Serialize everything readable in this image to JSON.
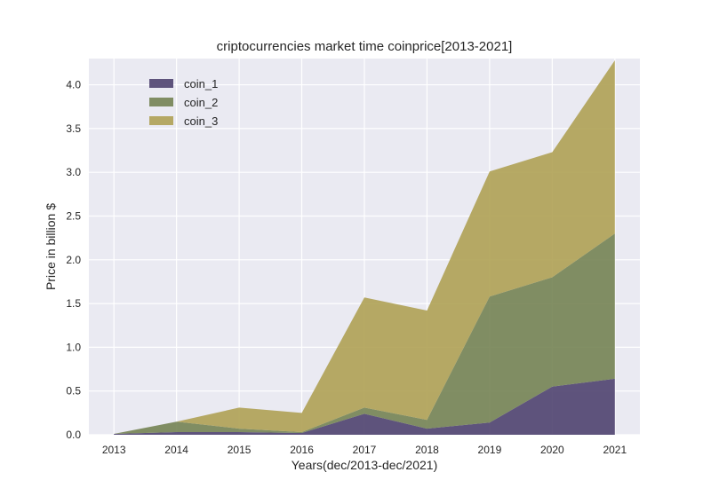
{
  "chart_data": {
    "type": "area",
    "stacked": true,
    "title": "criptocurrencies market time coinprice[2013-2021]",
    "xlabel": "Years(dec/2013-dec/2021)",
    "ylabel": "Price in billion $",
    "x": [
      2013,
      2014,
      2015,
      2016,
      2017,
      2018,
      2019,
      2020,
      2021
    ],
    "ylim": [
      0,
      4.3
    ],
    "yticks": [
      0.0,
      0.5,
      1.0,
      1.5,
      2.0,
      2.5,
      3.0,
      3.5,
      4.0
    ],
    "ytick_labels": [
      "0.0",
      "0.5",
      "1.0",
      "1.5",
      "2.0",
      "2.5",
      "3.0",
      "3.5",
      "4.0"
    ],
    "grid": true,
    "legend": "top-left",
    "series": [
      {
        "name": "coin_1",
        "color": "#4a3e6b",
        "values": [
          0.01,
          0.03,
          0.03,
          0.02,
          0.24,
          0.07,
          0.14,
          0.55,
          0.64
        ]
      },
      {
        "name": "coin_2",
        "color": "#717f4f",
        "values": [
          0.0,
          0.12,
          0.04,
          0.01,
          0.07,
          0.1,
          1.44,
          1.25,
          1.66
        ]
      },
      {
        "name": "coin_3",
        "color": "#ad9e50",
        "values": [
          0.0,
          0.0,
          0.24,
          0.22,
          1.26,
          1.25,
          1.43,
          1.43,
          1.98
        ]
      }
    ]
  }
}
